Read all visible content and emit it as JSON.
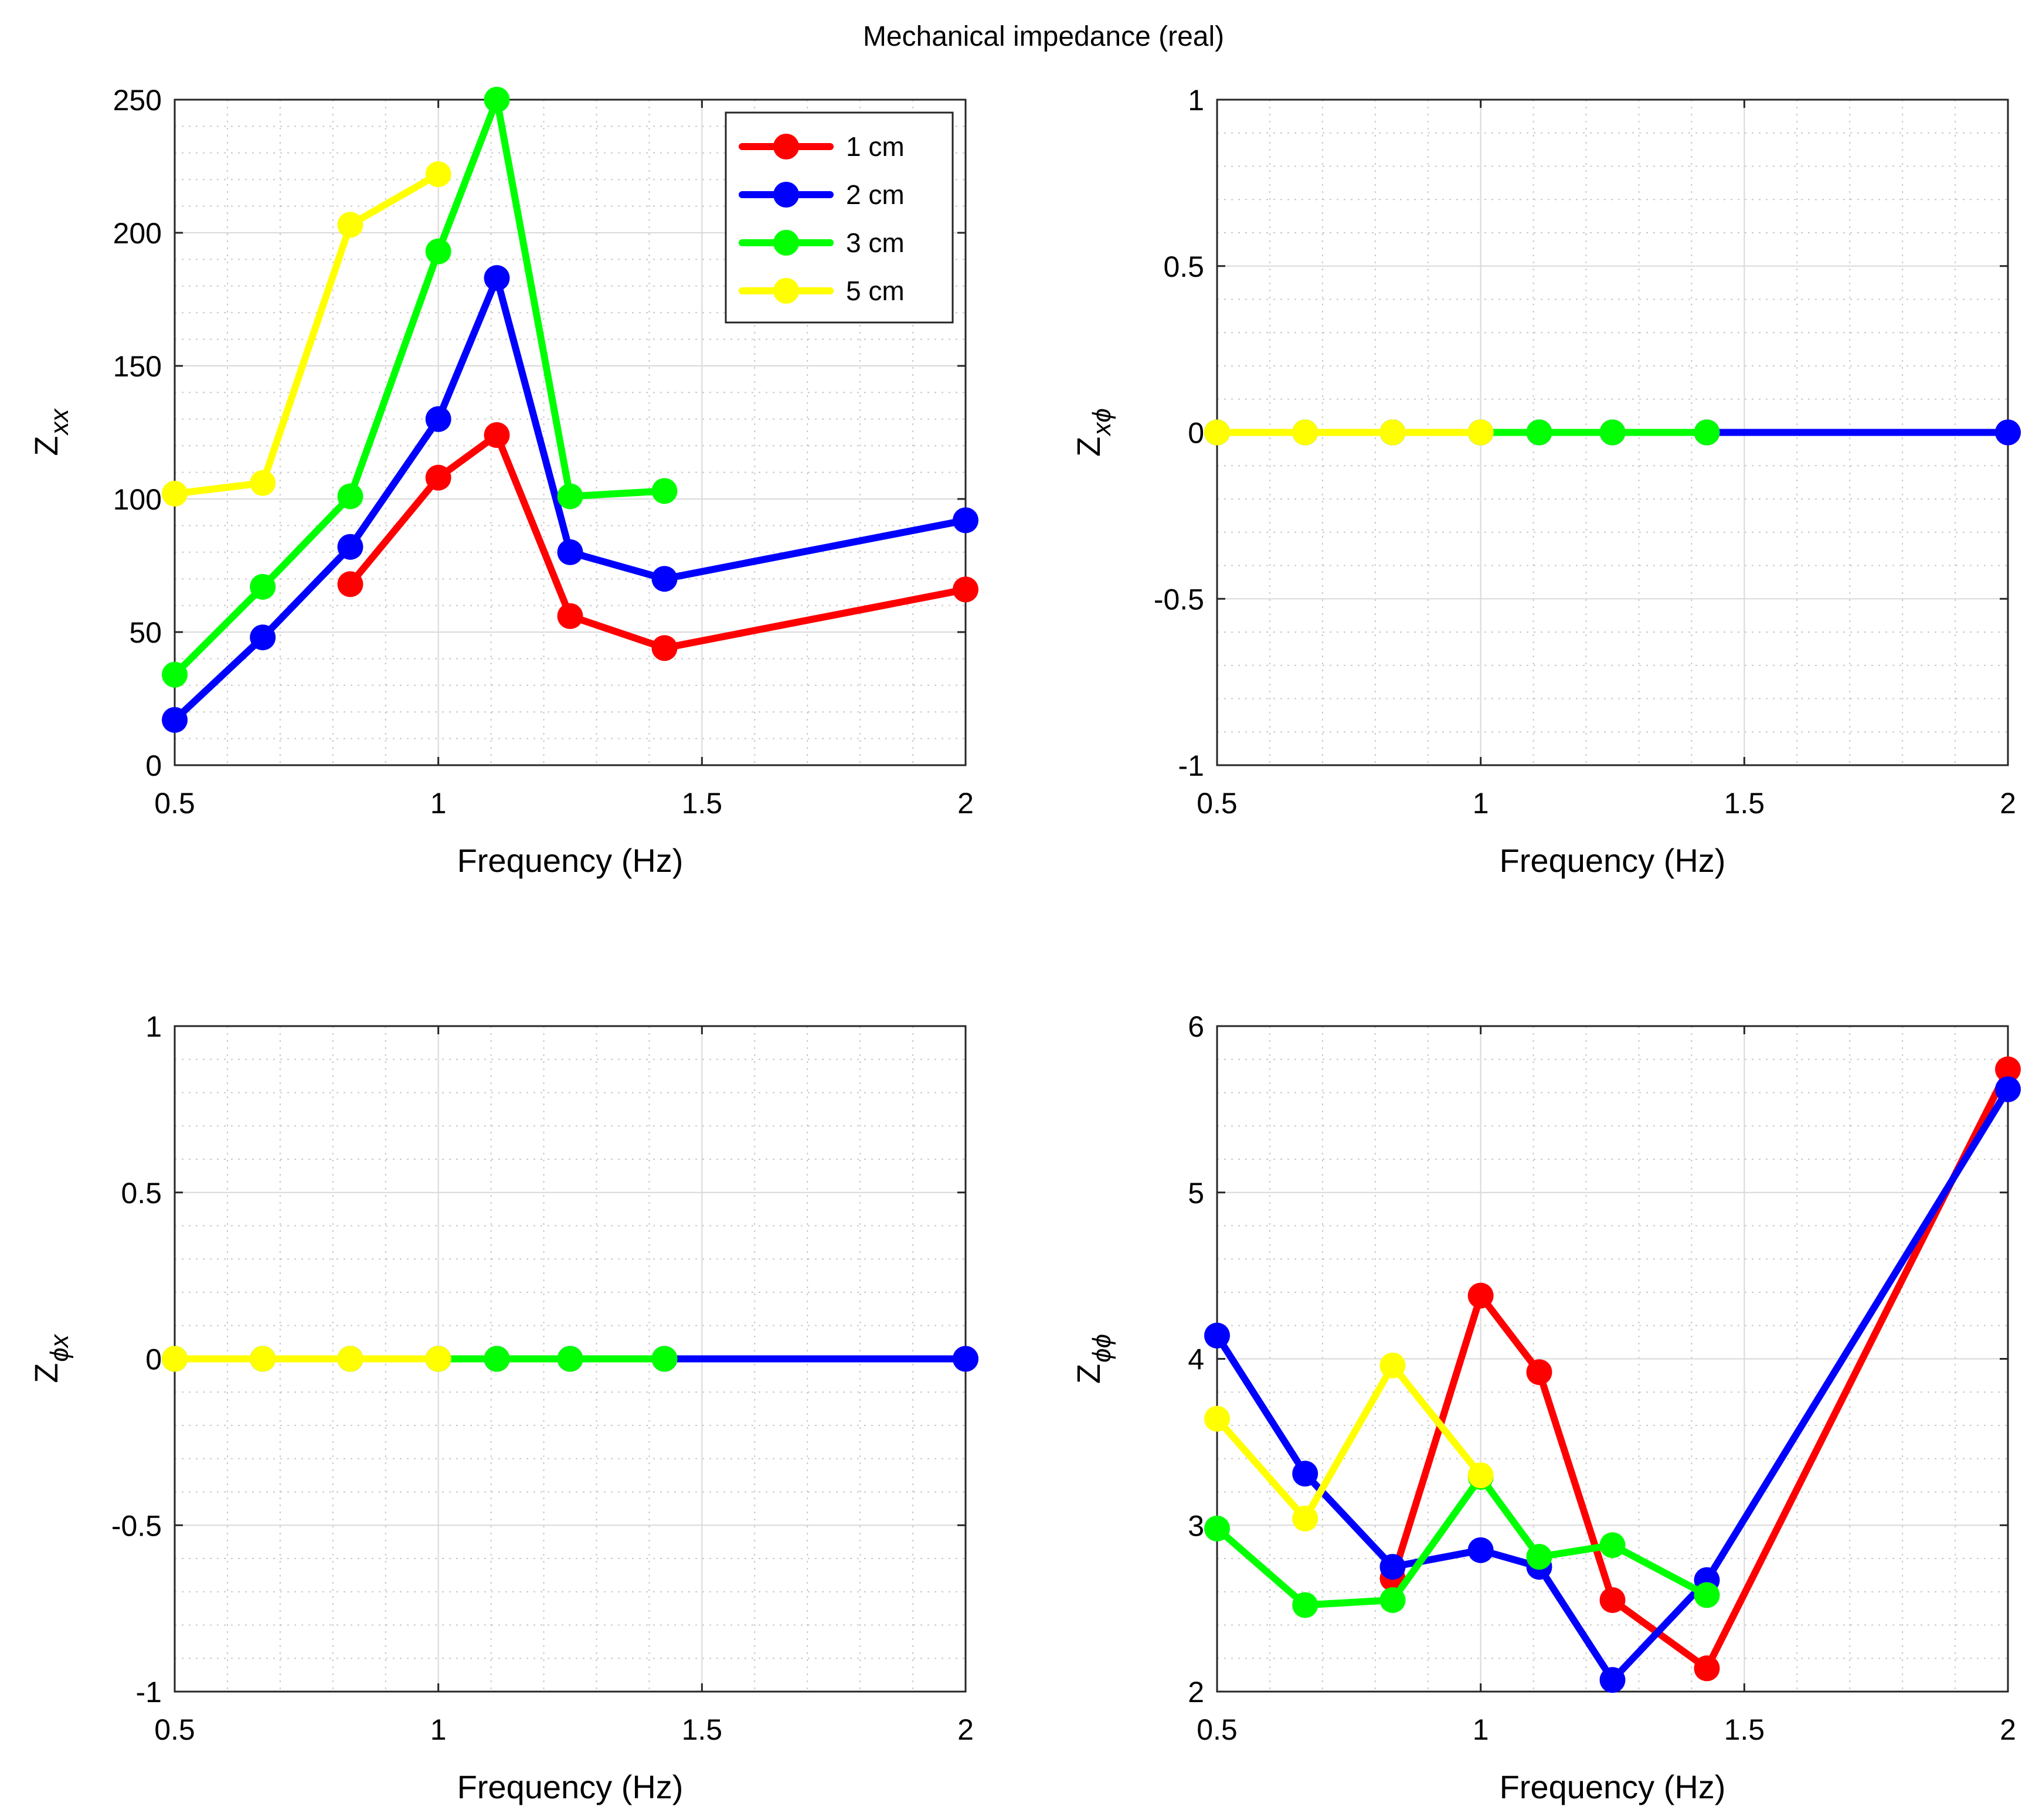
{
  "figure": {
    "title": "Mechanical impedance (real)"
  },
  "legend": {
    "entries": [
      {
        "label": "1 cm",
        "color": "#ff0000"
      },
      {
        "label": "2 cm",
        "color": "#0000ff"
      },
      {
        "label": "3 cm",
        "color": "#00ff00"
      },
      {
        "label": "5 cm",
        "color": "#ffff00"
      }
    ]
  },
  "chart_data": [
    {
      "id": "zxx",
      "type": "line",
      "title": "",
      "xlabel": "Frequency (Hz)",
      "ylabel_main": "Z",
      "ylabel_sub": "xx",
      "xlim": [
        0.5,
        2
      ],
      "ylim": [
        0,
        250
      ],
      "xticks": [
        0.5,
        1,
        1.5,
        2
      ],
      "xtick_labels": [
        "0.5",
        "1",
        "1.5",
        "2"
      ],
      "yticks": [
        0,
        50,
        100,
        150,
        200,
        250
      ],
      "ytick_labels": [
        "0",
        "50",
        "100",
        "150",
        "200",
        "250"
      ],
      "grid": true,
      "legend": "top-right",
      "series": [
        {
          "name": "1 cm",
          "color": "#ff0000",
          "x": [
            0.833,
            1.0,
            1.111,
            1.25,
            1.429,
            2.0
          ],
          "y": [
            68,
            108,
            124,
            56,
            44,
            66
          ]
        },
        {
          "name": "2 cm",
          "color": "#0000ff",
          "x": [
            0.5,
            0.667,
            0.833,
            1.0,
            1.111,
            1.25,
            1.429,
            2.0
          ],
          "y": [
            17,
            48,
            82,
            130,
            183,
            80,
            70,
            92
          ]
        },
        {
          "name": "3 cm",
          "color": "#00ff00",
          "x": [
            0.5,
            0.667,
            0.833,
            1.0,
            1.111,
            1.25,
            1.429
          ],
          "y": [
            34,
            67,
            101,
            193,
            250,
            101,
            103
          ]
        },
        {
          "name": "5 cm",
          "color": "#ffff00",
          "x": [
            0.5,
            0.667,
            0.833,
            1.0
          ],
          "y": [
            102,
            106,
            203,
            222
          ]
        }
      ]
    },
    {
      "id": "zxphi",
      "type": "line",
      "title": "",
      "xlabel": "Frequency (Hz)",
      "ylabel_main": "Z",
      "ylabel_sub": "xϕ",
      "xlim": [
        0.5,
        2
      ],
      "ylim": [
        -1,
        1
      ],
      "xticks": [
        0.5,
        1,
        1.5,
        2
      ],
      "xtick_labels": [
        "0.5",
        "1",
        "1.5",
        "2"
      ],
      "yticks": [
        -1,
        -0.5,
        0,
        0.5,
        1
      ],
      "ytick_labels": [
        "-1",
        "-0.5",
        "0",
        "0.5",
        "1"
      ],
      "grid": true,
      "series": [
        {
          "name": "1 cm",
          "color": "#ff0000",
          "x": [
            0.833,
            1.0,
            1.111,
            1.25,
            1.429,
            2.0
          ],
          "y": [
            0,
            0,
            0,
            0,
            0,
            0
          ]
        },
        {
          "name": "2 cm",
          "color": "#0000ff",
          "x": [
            0.5,
            0.667,
            0.833,
            1.0,
            1.111,
            1.25,
            1.429,
            2.0
          ],
          "y": [
            0,
            0,
            0,
            0,
            0,
            0,
            0,
            0
          ]
        },
        {
          "name": "3 cm",
          "color": "#00ff00",
          "x": [
            0.5,
            0.667,
            0.833,
            1.0,
            1.111,
            1.25,
            1.429
          ],
          "y": [
            0,
            0,
            0,
            0,
            0,
            0,
            0
          ]
        },
        {
          "name": "5 cm",
          "color": "#ffff00",
          "x": [
            0.5,
            0.667,
            0.833,
            1.0
          ],
          "y": [
            0,
            0,
            0,
            0
          ]
        }
      ]
    },
    {
      "id": "zphix",
      "type": "line",
      "title": "",
      "xlabel": "Frequency (Hz)",
      "ylabel_main": "Z",
      "ylabel_sub": "ϕx",
      "xlim": [
        0.5,
        2
      ],
      "ylim": [
        -1,
        1
      ],
      "xticks": [
        0.5,
        1,
        1.5,
        2
      ],
      "xtick_labels": [
        "0.5",
        "1",
        "1.5",
        "2"
      ],
      "yticks": [
        -1,
        -0.5,
        0,
        0.5,
        1
      ],
      "ytick_labels": [
        "-1",
        "-0.5",
        "0",
        "0.5",
        "1"
      ],
      "grid": true,
      "series": [
        {
          "name": "1 cm",
          "color": "#ff0000",
          "x": [
            0.833,
            1.0,
            1.111,
            1.25,
            1.429,
            2.0
          ],
          "y": [
            0,
            0,
            0,
            0,
            0,
            0
          ]
        },
        {
          "name": "2 cm",
          "color": "#0000ff",
          "x": [
            0.5,
            0.667,
            0.833,
            1.0,
            1.111,
            1.25,
            1.429,
            2.0
          ],
          "y": [
            0,
            0,
            0,
            0,
            0,
            0,
            0,
            0
          ]
        },
        {
          "name": "3 cm",
          "color": "#00ff00",
          "x": [
            0.5,
            0.667,
            0.833,
            1.0,
            1.111,
            1.25,
            1.429
          ],
          "y": [
            0,
            0,
            0,
            0,
            0,
            0,
            0
          ]
        },
        {
          "name": "5 cm",
          "color": "#ffff00",
          "x": [
            0.5,
            0.667,
            0.833,
            1.0
          ],
          "y": [
            0,
            0,
            0,
            0
          ]
        }
      ]
    },
    {
      "id": "zphiphi",
      "type": "line",
      "title": "",
      "xlabel": "Frequency (Hz)",
      "ylabel_main": "Z",
      "ylabel_sub": "ϕϕ",
      "xlim": [
        0.5,
        2
      ],
      "ylim": [
        2,
        6
      ],
      "xticks": [
        0.5,
        1,
        1.5,
        2
      ],
      "xtick_labels": [
        "0.5",
        "1",
        "1.5",
        "2"
      ],
      "yticks": [
        2,
        3,
        4,
        5,
        6
      ],
      "ytick_labels": [
        "2",
        "3",
        "4",
        "5",
        "6"
      ],
      "grid": true,
      "series": [
        {
          "name": "1 cm",
          "color": "#ff0000",
          "x": [
            0.833,
            1.0,
            1.111,
            1.25,
            1.429,
            2.0
          ],
          "y": [
            2.68,
            4.38,
            3.92,
            2.55,
            2.14,
            5.74
          ]
        },
        {
          "name": "2 cm",
          "color": "#0000ff",
          "x": [
            0.5,
            0.667,
            0.833,
            1.0,
            1.111,
            1.25,
            1.429,
            2.0
          ],
          "y": [
            4.14,
            3.31,
            2.75,
            2.85,
            2.75,
            2.07,
            2.67,
            5.62
          ]
        },
        {
          "name": "3 cm",
          "color": "#00ff00",
          "x": [
            0.5,
            0.667,
            0.833,
            1.0,
            1.111,
            1.25,
            1.429
          ],
          "y": [
            2.98,
            2.52,
            2.55,
            3.29,
            2.81,
            2.88,
            2.58
          ]
        },
        {
          "name": "5 cm",
          "color": "#ffff00",
          "x": [
            0.5,
            0.667,
            0.833,
            1.0
          ],
          "y": [
            3.64,
            3.04,
            3.96,
            3.3
          ]
        }
      ]
    }
  ]
}
